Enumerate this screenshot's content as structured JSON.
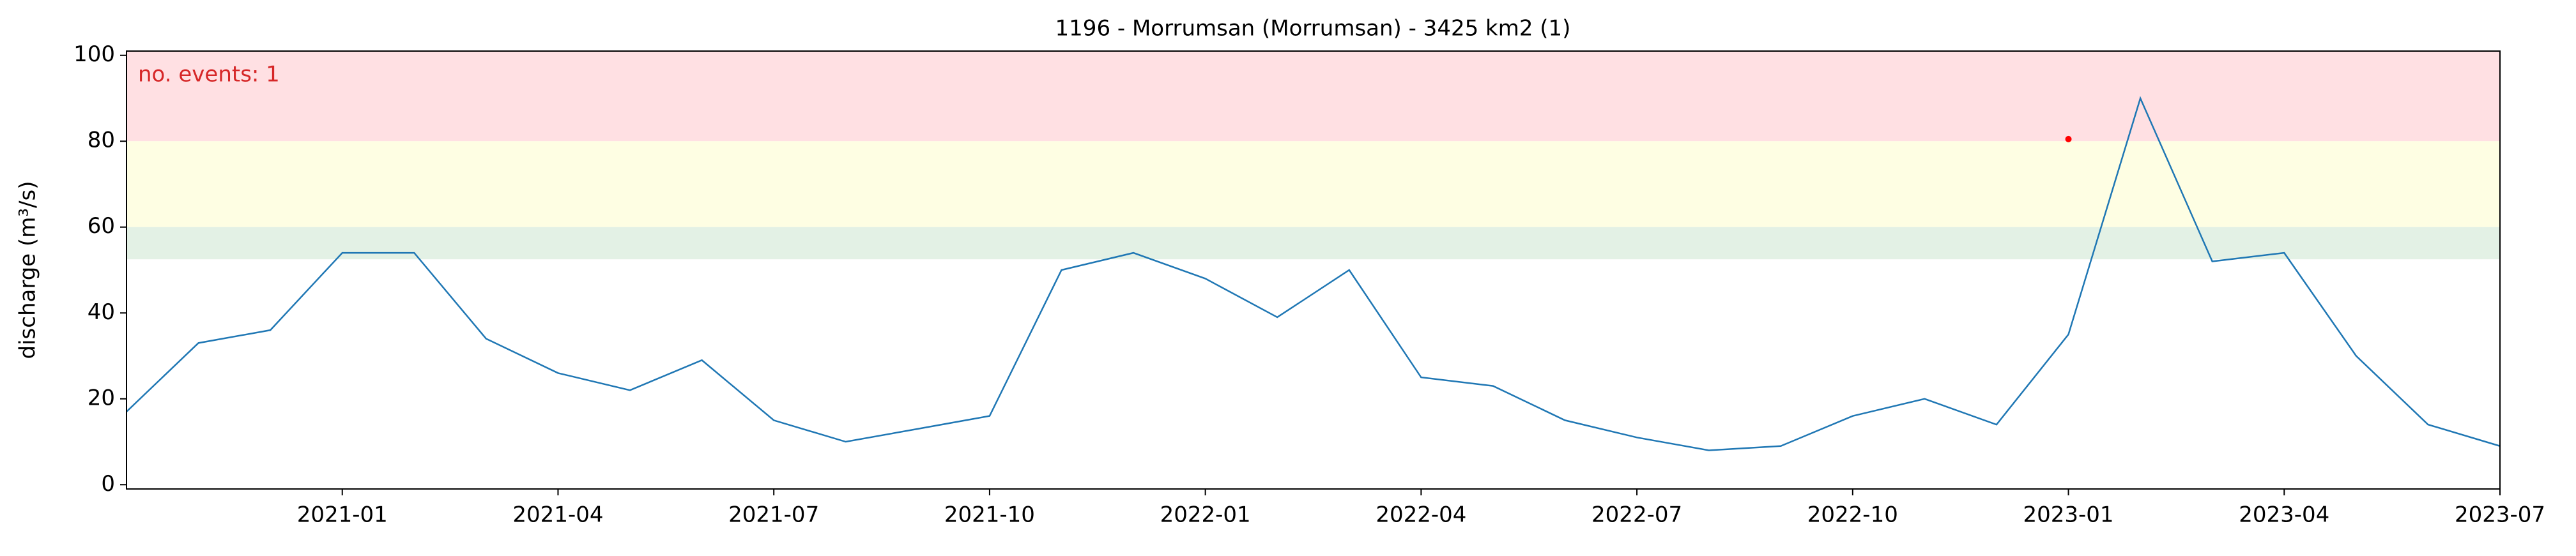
{
  "chart_data": {
    "type": "line",
    "title": "1196 - Morrumsan (Morrumsan) - 3425 km2 (1)",
    "y_label": "discharge (m³/s)",
    "annotation": "no. events: 1",
    "annotation_color": "#d62728",
    "x": [
      "2020-10",
      "2020-11",
      "2020-12",
      "2021-01",
      "2021-02",
      "2021-03",
      "2021-04",
      "2021-05",
      "2021-06",
      "2021-07",
      "2021-08",
      "2021-09",
      "2021-10",
      "2021-11",
      "2021-12",
      "2022-01",
      "2022-02",
      "2022-03",
      "2022-04",
      "2022-05",
      "2022-06",
      "2022-07",
      "2022-08",
      "2022-09",
      "2022-10",
      "2022-11",
      "2022-12",
      "2023-01",
      "2023-02",
      "2023-03",
      "2023-04",
      "2023-05",
      "2023-06",
      "2023-07"
    ],
    "series": [
      {
        "name": "discharge",
        "color": "#1f77b4",
        "values": [
          17,
          33,
          36,
          54,
          54,
          34,
          26,
          22,
          29,
          15,
          10,
          13,
          16,
          50,
          54,
          48,
          39,
          50,
          25,
          23,
          15,
          11,
          8,
          9,
          16,
          20,
          14,
          35,
          90,
          52,
          54,
          30,
          14,
          9
        ]
      }
    ],
    "events": {
      "x": [
        "2023-01"
      ],
      "values": [
        80.5
      ],
      "color": "#ff0000"
    },
    "bands": [
      {
        "from": 80,
        "to": 101,
        "color": "#ffe0e3"
      },
      {
        "from": 60,
        "to": 80,
        "color": "#fefee3"
      },
      {
        "from": 52.5,
        "to": 60,
        "color": "#e3f1e5"
      }
    ],
    "xlim": [
      "2020-10",
      "2023-07"
    ],
    "xticks": [
      "2021-01",
      "2021-04",
      "2021-07",
      "2021-10",
      "2022-01",
      "2022-04",
      "2022-07",
      "2022-10",
      "2023-01",
      "2023-04",
      "2023-07"
    ],
    "ylim": [
      -1,
      101
    ],
    "yticks": [
      0,
      20,
      40,
      60,
      80,
      100
    ]
  }
}
